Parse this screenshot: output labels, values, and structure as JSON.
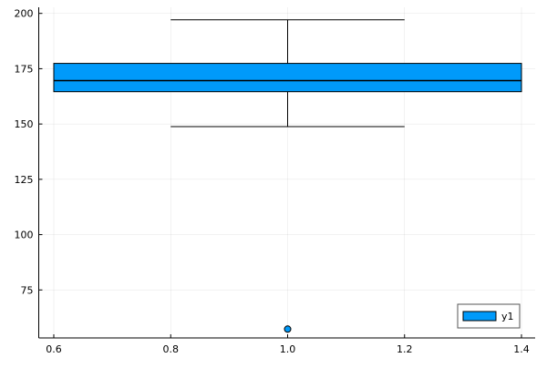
{
  "chart_data": {
    "type": "box",
    "title": "",
    "xlabel": "",
    "ylabel": "",
    "xlim": [
      0.57,
      1.43
    ],
    "ylim": [
      53,
      202
    ],
    "xticks": [
      0.6,
      0.8,
      1.0,
      1.2,
      1.4
    ],
    "xtick_labels": [
      "0.6",
      "0.8",
      "1.0",
      "1.2",
      "1.4"
    ],
    "yticks": [
      75,
      100,
      125,
      150,
      175,
      200
    ],
    "ytick_labels": [
      "75",
      "100",
      "125",
      "150",
      "175",
      "200"
    ],
    "grid": true,
    "legend": {
      "position": "bottom-right",
      "entries": [
        "y1"
      ]
    },
    "series": [
      {
        "name": "y1",
        "color": "#009AFA",
        "x": 1.0,
        "box_left": 0.6,
        "box_right": 1.4,
        "whisker_left": 0.8,
        "whisker_right": 1.2,
        "q1": 164.6,
        "median": 169.6,
        "q3": 177.4,
        "whisker_low": 148.8,
        "whisker_high": 197.1,
        "outliers": [
          57.3
        ]
      }
    ]
  }
}
